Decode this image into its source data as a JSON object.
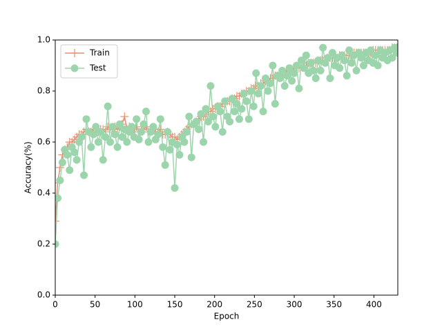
{
  "chart_data": {
    "type": "line",
    "xlabel": "Epoch",
    "ylabel": "Accuracy(%)",
    "x": [
      0,
      3,
      6,
      9,
      12,
      15,
      18,
      21,
      24,
      27,
      30,
      33,
      36,
      39,
      42,
      45,
      48,
      51,
      54,
      57,
      60,
      63,
      66,
      69,
      72,
      75,
      78,
      81,
      84,
      87,
      90,
      93,
      96,
      99,
      102,
      105,
      108,
      111,
      114,
      117,
      120,
      123,
      126,
      129,
      132,
      135,
      138,
      141,
      144,
      147,
      150,
      153,
      156,
      159,
      162,
      165,
      168,
      171,
      174,
      177,
      180,
      183,
      186,
      189,
      192,
      195,
      198,
      201,
      204,
      207,
      210,
      213,
      216,
      219,
      222,
      225,
      228,
      231,
      234,
      237,
      240,
      243,
      246,
      249,
      252,
      255,
      258,
      261,
      264,
      267,
      270,
      273,
      276,
      279,
      282,
      285,
      288,
      291,
      294,
      297,
      300,
      303,
      306,
      309,
      312,
      315,
      318,
      321,
      324,
      327,
      330,
      333,
      336,
      339,
      342,
      345,
      348,
      351,
      354,
      357,
      360,
      363,
      366,
      369,
      372,
      375,
      378,
      381,
      384,
      387,
      390,
      393,
      396,
      399,
      402,
      405,
      408,
      411,
      414,
      417,
      420,
      423,
      426,
      429
    ],
    "series": [
      {
        "name": "Train",
        "color": "#e8916f",
        "marker": "plus",
        "values": [
          0.29,
          0.44,
          0.5,
          0.55,
          0.57,
          0.58,
          0.6,
          0.6,
          0.61,
          0.62,
          0.63,
          0.63,
          0.64,
          0.65,
          0.64,
          0.64,
          0.65,
          0.65,
          0.64,
          0.65,
          0.65,
          0.64,
          0.66,
          0.65,
          0.65,
          0.66,
          0.65,
          0.66,
          0.67,
          0.7,
          0.65,
          0.66,
          0.64,
          0.65,
          0.66,
          0.64,
          0.65,
          0.65,
          0.66,
          0.64,
          0.65,
          0.65,
          0.64,
          0.64,
          0.65,
          0.63,
          0.63,
          0.64,
          0.63,
          0.62,
          0.62,
          0.61,
          0.62,
          0.63,
          0.64,
          0.65,
          0.66,
          0.67,
          0.67,
          0.68,
          0.69,
          0.7,
          0.7,
          0.71,
          0.72,
          0.72,
          0.73,
          0.73,
          0.74,
          0.74,
          0.75,
          0.75,
          0.76,
          0.76,
          0.77,
          0.77,
          0.78,
          0.78,
          0.79,
          0.79,
          0.8,
          0.8,
          0.81,
          0.81,
          0.82,
          0.82,
          0.83,
          0.83,
          0.84,
          0.84,
          0.85,
          0.85,
          0.86,
          0.86,
          0.86,
          0.87,
          0.87,
          0.88,
          0.88,
          0.88,
          0.89,
          0.89,
          0.89,
          0.9,
          0.9,
          0.9,
          0.91,
          0.91,
          0.91,
          0.91,
          0.92,
          0.92,
          0.92,
          0.92,
          0.93,
          0.93,
          0.93,
          0.93,
          0.93,
          0.94,
          0.94,
          0.94,
          0.94,
          0.94,
          0.94,
          0.95,
          0.95,
          0.95,
          0.95,
          0.95,
          0.95,
          0.95,
          0.95,
          0.96,
          0.96,
          0.96,
          0.96,
          0.96,
          0.96,
          0.96,
          0.96,
          0.97,
          0.97,
          0.97
        ]
      },
      {
        "name": "Test",
        "color": "#9cd5ab",
        "marker": "circle",
        "values": [
          0.2,
          0.38,
          0.45,
          0.52,
          0.57,
          0.55,
          0.49,
          0.58,
          0.56,
          0.53,
          0.6,
          0.62,
          0.47,
          0.69,
          0.64,
          0.58,
          0.63,
          0.66,
          0.6,
          0.64,
          0.53,
          0.62,
          0.74,
          0.6,
          0.66,
          0.63,
          0.58,
          0.67,
          0.62,
          0.65,
          0.6,
          0.64,
          0.66,
          0.62,
          0.69,
          0.61,
          0.64,
          0.67,
          0.72,
          0.6,
          0.64,
          0.66,
          0.61,
          0.63,
          0.69,
          0.58,
          0.51,
          0.64,
          0.57,
          0.6,
          0.42,
          0.59,
          0.55,
          0.62,
          0.6,
          0.64,
          0.7,
          0.54,
          0.67,
          0.68,
          0.65,
          0.71,
          0.6,
          0.73,
          0.68,
          0.82,
          0.7,
          0.66,
          0.74,
          0.72,
          0.64,
          0.76,
          0.7,
          0.68,
          0.77,
          0.72,
          0.75,
          0.69,
          0.73,
          0.79,
          0.76,
          0.69,
          0.8,
          0.74,
          0.87,
          0.79,
          0.82,
          0.72,
          0.85,
          0.8,
          0.83,
          0.9,
          0.75,
          0.86,
          0.85,
          0.88,
          0.82,
          0.86,
          0.89,
          0.84,
          0.87,
          0.9,
          0.81,
          0.92,
          0.89,
          0.94,
          0.87,
          0.91,
          0.88,
          0.85,
          0.92,
          0.88,
          0.97,
          0.91,
          0.93,
          0.85,
          0.95,
          0.9,
          0.93,
          0.89,
          0.94,
          0.92,
          0.86,
          0.96,
          0.91,
          0.94,
          0.88,
          0.95,
          0.93,
          0.9,
          0.95,
          0.92,
          0.96,
          0.91,
          0.94,
          0.9,
          0.96,
          0.93,
          0.95,
          0.92,
          0.96,
          0.93,
          0.97,
          0.95
        ]
      }
    ],
    "xlim": [
      0,
      430
    ],
    "ylim": [
      0,
      1
    ],
    "xticks": [
      0,
      50,
      100,
      150,
      200,
      250,
      300,
      350,
      400
    ],
    "yticks": [
      {
        "value": 0,
        "label": "0.0"
      },
      {
        "value": 0.2,
        "label": "0.2"
      },
      {
        "value": 0.4,
        "label": "0.4"
      },
      {
        "value": 0.6,
        "label": "0.6"
      },
      {
        "value": 0.8,
        "label": "0.8"
      },
      {
        "value": 1,
        "label": "1.0"
      }
    ],
    "legend": "upper left"
  }
}
